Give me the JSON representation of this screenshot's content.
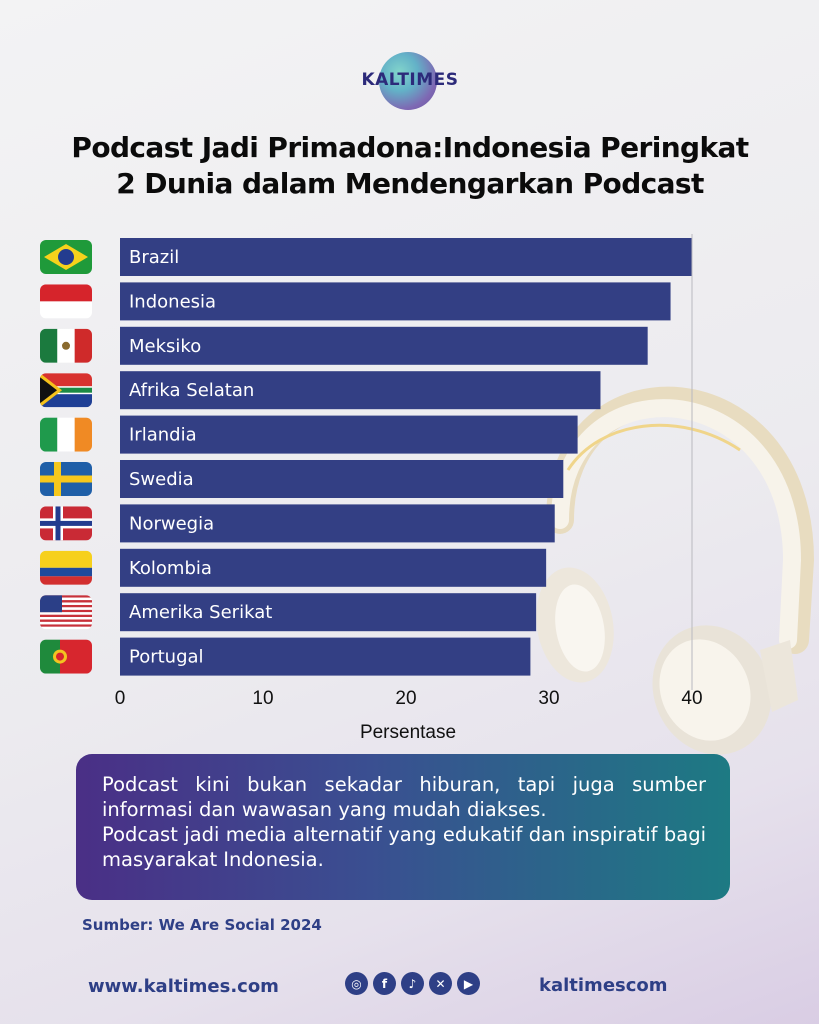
{
  "brand": {
    "logo_text": "KALTIMES"
  },
  "title": {
    "line1": "Podcast Jadi Primadona:Indonesia Peringkat",
    "line2": "2 Dunia dalam Mendengarkan Podcast"
  },
  "chart_data": {
    "type": "bar",
    "orientation": "horizontal",
    "categories": [
      "Brazil",
      "Indonesia",
      "Meksiko",
      "Afrika Selatan",
      "Irlandia",
      "Swedia",
      "Norwegia",
      "Kolombia",
      "Amerika Serikat",
      "Portugal"
    ],
    "values": [
      40.0,
      38.5,
      36.9,
      33.6,
      32.0,
      31.0,
      30.4,
      29.8,
      29.1,
      28.7
    ],
    "xlabel": "Persentase",
    "ylabel": "",
    "xlim": [
      0,
      40
    ],
    "xticks": [
      0,
      10,
      20,
      30,
      40
    ],
    "grid": "vertical at 40",
    "legend": "none",
    "bar_color": "#333f84"
  },
  "flags": [
    "brazil-flag-icon",
    "indonesia-flag-icon",
    "mexico-flag-icon",
    "south-africa-flag-icon",
    "ireland-flag-icon",
    "sweden-flag-icon",
    "norway-flag-icon",
    "colombia-flag-icon",
    "usa-flag-icon",
    "portugal-flag-icon"
  ],
  "note": {
    "p1": "Podcast kini bukan sekadar hiburan, tapi juga sumber informasi dan wawasan yang mudah diakses.",
    "p2": "Podcast jadi media alternatif yang edukatif dan inspiratif bagi masyarakat Indonesia."
  },
  "source": "Sumber: We Are Social 2024",
  "footer": {
    "website": "www.kaltimes.com",
    "handle": "kaltimescom",
    "socials": [
      "instagram-icon",
      "facebook-icon",
      "tiktok-icon",
      "x-icon",
      "youtube-icon"
    ]
  },
  "colors": {
    "accent": "#2e3f86",
    "bar": "#333f84",
    "note_from": "#4a2f86",
    "note_to": "#1d7a83"
  }
}
